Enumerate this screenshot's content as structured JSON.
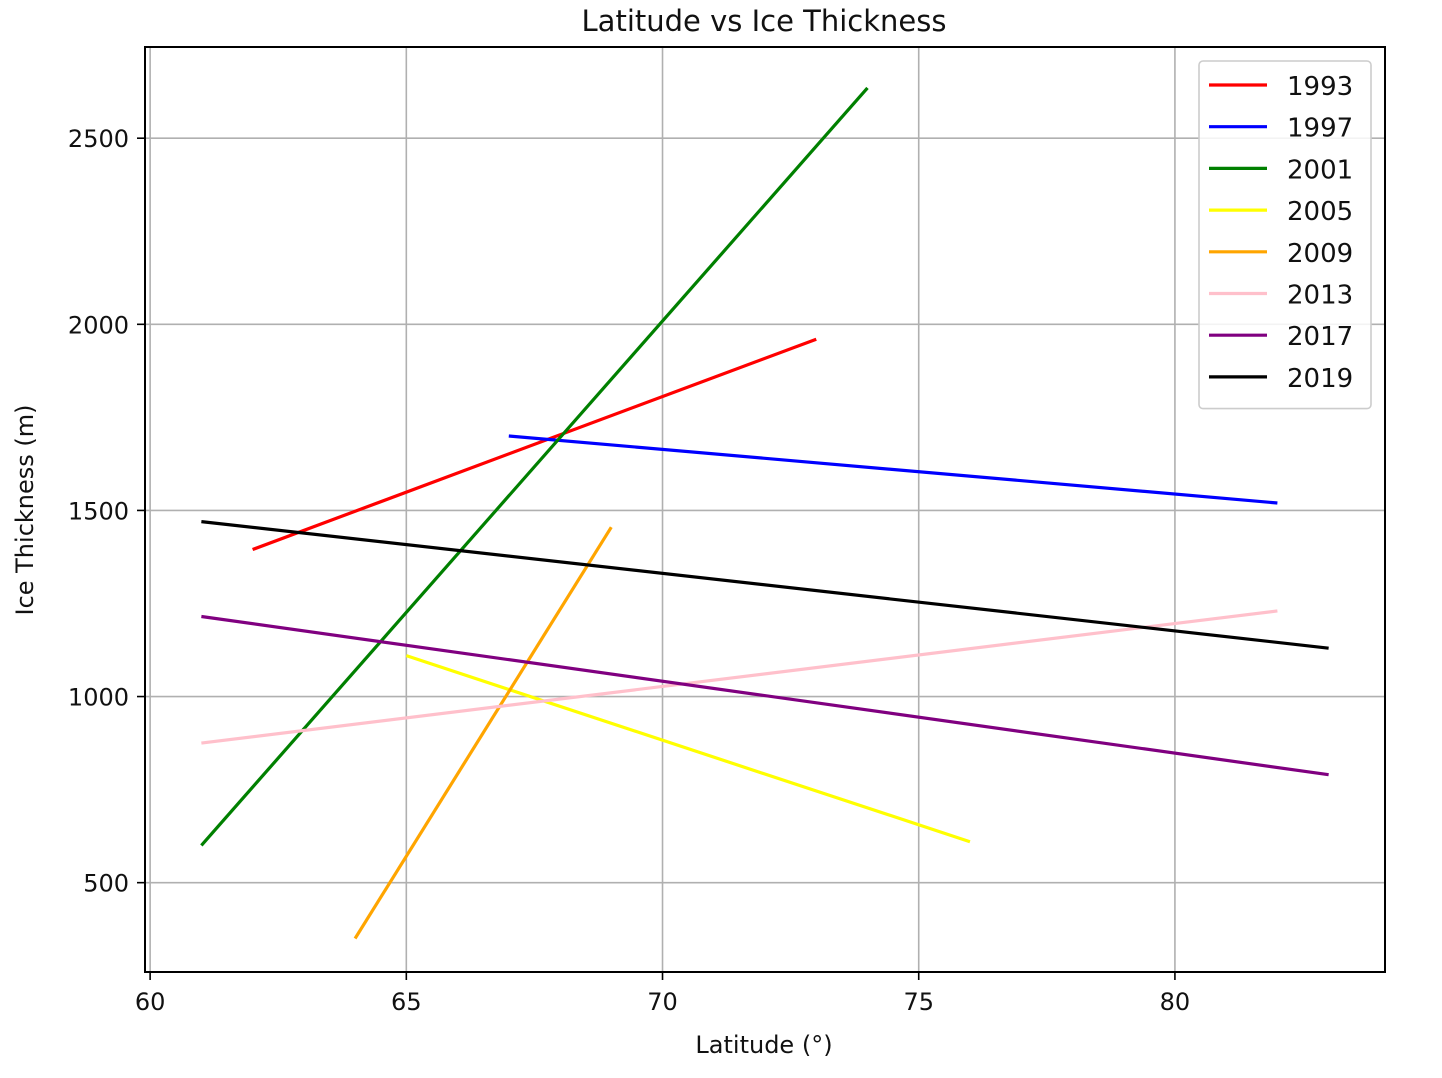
{
  "chart_data": {
    "type": "line",
    "title": "Latitude vs Ice Thickness",
    "xlabel": "Latitude (°)",
    "ylabel": "Ice Thickness (m)",
    "xlim": [
      59.9,
      84.1
    ],
    "ylim": [
      260,
      2745
    ],
    "xticks": [
      60,
      65,
      70,
      75,
      80
    ],
    "yticks": [
      500,
      1000,
      1500,
      2000,
      2500
    ],
    "grid": true,
    "legend_position": "top-right",
    "series": [
      {
        "name": "1993",
        "color": "#ff0000",
        "x": [
          62,
          73
        ],
        "y": [
          1395,
          1960
        ]
      },
      {
        "name": "1997",
        "color": "#0000ff",
        "x": [
          67,
          82
        ],
        "y": [
          1700,
          1520
        ]
      },
      {
        "name": "2001",
        "color": "#008000",
        "x": [
          61,
          74
        ],
        "y": [
          600,
          2635
        ]
      },
      {
        "name": "2005",
        "color": "#ffff00",
        "x": [
          65,
          76
        ],
        "y": [
          1110,
          610
        ]
      },
      {
        "name": "2009",
        "color": "#ffa500",
        "x": [
          64,
          69
        ],
        "y": [
          350,
          1455
        ]
      },
      {
        "name": "2013",
        "color": "#ffc0cb",
        "x": [
          61,
          82
        ],
        "y": [
          875,
          1230
        ]
      },
      {
        "name": "2017",
        "color": "#800080",
        "x": [
          61,
          83
        ],
        "y": [
          1215,
          790
        ]
      },
      {
        "name": "2019",
        "color": "#000000",
        "x": [
          61,
          83
        ],
        "y": [
          1470,
          1130
        ]
      }
    ]
  }
}
